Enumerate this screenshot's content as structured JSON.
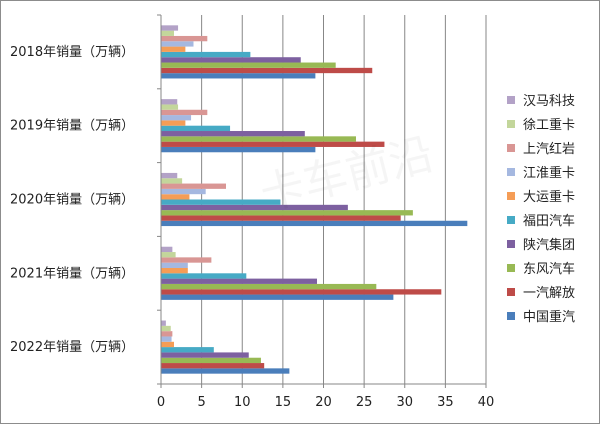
{
  "chart_data": {
    "type": "bar",
    "orientation": "horizontal",
    "categories": [
      "2018年销量（万辆）",
      "2019年销量（万辆）",
      "2020年销量（万辆）",
      "2021年销量（万辆）",
      "2022年销量（万辆）"
    ],
    "series": [
      {
        "name": "中国重汽",
        "color": "#4a7ebb",
        "values": [
          19.0,
          19.0,
          37.7,
          28.6,
          15.8
        ]
      },
      {
        "name": "一汽解放",
        "color": "#be4b48",
        "values": [
          26.0,
          27.5,
          29.5,
          34.5,
          12.7
        ]
      },
      {
        "name": "东风汽车",
        "color": "#98b954",
        "values": [
          21.5,
          24.0,
          31.0,
          26.5,
          12.3
        ]
      },
      {
        "name": "陕汽集团",
        "color": "#7d60a0",
        "values": [
          17.2,
          17.7,
          23.0,
          19.2,
          10.8
        ]
      },
      {
        "name": "福田汽车",
        "color": "#46aac5",
        "values": [
          11.0,
          8.5,
          14.7,
          10.5,
          6.5
        ]
      },
      {
        "name": "大运重卡",
        "color": "#f59d56",
        "values": [
          3.0,
          3.0,
          3.5,
          3.3,
          1.6
        ]
      },
      {
        "name": "江淮重卡",
        "color": "#a5b8e0",
        "values": [
          4.0,
          3.7,
          5.5,
          3.3,
          1.3
        ]
      },
      {
        "name": "上汽红岩",
        "color": "#d99694",
        "values": [
          5.7,
          5.7,
          8.0,
          6.2,
          1.4
        ]
      },
      {
        "name": "徐工重卡",
        "color": "#c3d69b",
        "values": [
          1.6,
          2.1,
          2.6,
          1.8,
          1.2
        ]
      },
      {
        "name": "汉马科技",
        "color": "#b3a2c7",
        "values": [
          2.1,
          2.0,
          2.0,
          1.4,
          0.6
        ]
      }
    ],
    "xlim": [
      0,
      40
    ],
    "xticks": [
      "0",
      "5",
      "10",
      "15",
      "20",
      "25",
      "30",
      "35",
      "40"
    ],
    "legend_order": [
      "汉马科技",
      "徐工重卡",
      "上汽红岩",
      "江淮重卡",
      "大运重卡",
      "福田汽车",
      "陕汽集团",
      "东风汽车",
      "一汽解放",
      "中国重汽"
    ],
    "legend_position": "right",
    "grid": "vertical"
  },
  "watermark": "卡车前沿"
}
